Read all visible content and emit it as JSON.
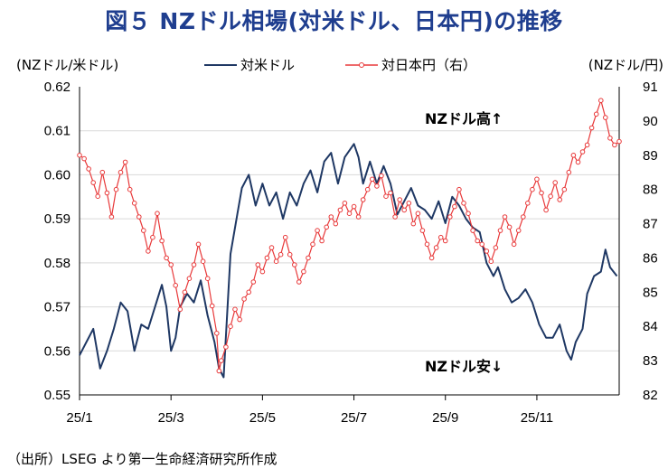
{
  "title": "図５ NZドル相場(対米ドル、日本円)の推移",
  "source": "（出所）LSEG より第一生命経済研究所作成",
  "colors": {
    "usd": "#1f3864",
    "jpy": "#e8393a",
    "title": "#1f3e8f"
  },
  "chart_data": {
    "type": "line",
    "left_axis_unit": "(NZドル/米ドル)",
    "right_axis_unit": "(NZドル/円)",
    "left_ylim": [
      0.55,
      0.62
    ],
    "right_ylim": [
      82,
      91
    ],
    "left_ticks": [
      "0.62",
      "0.61",
      "0.60",
      "0.59",
      "0.58",
      "0.57",
      "0.56",
      "0.55"
    ],
    "right_ticks": [
      "91",
      "90",
      "89",
      "88",
      "87",
      "86",
      "85",
      "84",
      "83",
      "82"
    ],
    "x_ticks": [
      "25/1",
      "25/3",
      "25/5",
      "25/7",
      "25/9",
      "25/11"
    ],
    "x_tick_positions": [
      0,
      2,
      4,
      6,
      8,
      10
    ],
    "xlim": [
      0,
      11.8
    ],
    "annotation_high": "NZドル高↑",
    "annotation_low": "NZドル安↓",
    "series": [
      {
        "name": "対米ドル",
        "axis": "left",
        "points": [
          [
            0,
            0.559
          ],
          [
            0.15,
            0.562
          ],
          [
            0.3,
            0.565
          ],
          [
            0.45,
            0.556
          ],
          [
            0.6,
            0.56
          ],
          [
            0.75,
            0.565
          ],
          [
            0.9,
            0.571
          ],
          [
            1.05,
            0.569
          ],
          [
            1.2,
            0.56
          ],
          [
            1.35,
            0.566
          ],
          [
            1.5,
            0.565
          ],
          [
            1.65,
            0.57
          ],
          [
            1.8,
            0.575
          ],
          [
            1.9,
            0.57
          ],
          [
            2.0,
            0.56
          ],
          [
            2.1,
            0.563
          ],
          [
            2.2,
            0.57
          ],
          [
            2.35,
            0.573
          ],
          [
            2.5,
            0.571
          ],
          [
            2.65,
            0.576
          ],
          [
            2.8,
            0.568
          ],
          [
            2.95,
            0.562
          ],
          [
            3.05,
            0.556
          ],
          [
            3.15,
            0.554
          ],
          [
            3.3,
            0.582
          ],
          [
            3.45,
            0.591
          ],
          [
            3.55,
            0.597
          ],
          [
            3.7,
            0.6
          ],
          [
            3.85,
            0.593
          ],
          [
            4.0,
            0.598
          ],
          [
            4.15,
            0.593
          ],
          [
            4.3,
            0.596
          ],
          [
            4.45,
            0.59
          ],
          [
            4.6,
            0.596
          ],
          [
            4.75,
            0.593
          ],
          [
            4.9,
            0.598
          ],
          [
            5.05,
            0.601
          ],
          [
            5.2,
            0.596
          ],
          [
            5.35,
            0.603
          ],
          [
            5.5,
            0.605
          ],
          [
            5.65,
            0.598
          ],
          [
            5.8,
            0.604
          ],
          [
            6.0,
            0.607
          ],
          [
            6.1,
            0.604
          ],
          [
            6.2,
            0.598
          ],
          [
            6.35,
            0.603
          ],
          [
            6.5,
            0.598
          ],
          [
            6.65,
            0.602
          ],
          [
            6.8,
            0.598
          ],
          [
            6.95,
            0.591
          ],
          [
            7.1,
            0.594
          ],
          [
            7.25,
            0.597
          ],
          [
            7.4,
            0.593
          ],
          [
            7.55,
            0.592
          ],
          [
            7.7,
            0.59
          ],
          [
            7.85,
            0.594
          ],
          [
            8.0,
            0.589
          ],
          [
            8.15,
            0.595
          ],
          [
            8.3,
            0.593
          ],
          [
            8.45,
            0.59
          ],
          [
            8.6,
            0.588
          ],
          [
            8.75,
            0.587
          ],
          [
            8.9,
            0.58
          ],
          [
            9.05,
            0.577
          ],
          [
            9.15,
            0.579
          ],
          [
            9.3,
            0.574
          ],
          [
            9.45,
            0.571
          ],
          [
            9.6,
            0.572
          ],
          [
            9.75,
            0.574
          ],
          [
            9.9,
            0.571
          ],
          [
            10.05,
            0.566
          ],
          [
            10.2,
            0.563
          ],
          [
            10.35,
            0.563
          ],
          [
            10.5,
            0.566
          ],
          [
            10.65,
            0.56
          ],
          [
            10.75,
            0.558
          ],
          [
            10.85,
            0.562
          ],
          [
            11.0,
            0.565
          ],
          [
            11.1,
            0.573
          ],
          [
            11.25,
            0.577
          ],
          [
            11.4,
            0.578
          ],
          [
            11.5,
            0.583
          ],
          [
            11.6,
            0.579
          ],
          [
            11.75,
            0.577
          ]
        ]
      },
      {
        "name": "対日本円（右）",
        "axis": "right",
        "points": [
          [
            0,
            89.0
          ],
          [
            0.1,
            88.9
          ],
          [
            0.2,
            88.6
          ],
          [
            0.3,
            88.2
          ],
          [
            0.4,
            87.8
          ],
          [
            0.5,
            88.5
          ],
          [
            0.6,
            87.9
          ],
          [
            0.7,
            87.2
          ],
          [
            0.8,
            88.0
          ],
          [
            0.9,
            88.5
          ],
          [
            1.0,
            88.8
          ],
          [
            1.1,
            88.0
          ],
          [
            1.2,
            87.6
          ],
          [
            1.3,
            87.2
          ],
          [
            1.4,
            86.8
          ],
          [
            1.5,
            86.2
          ],
          [
            1.6,
            86.6
          ],
          [
            1.7,
            87.3
          ],
          [
            1.8,
            86.5
          ],
          [
            1.9,
            86.0
          ],
          [
            2.0,
            85.8
          ],
          [
            2.1,
            85.2
          ],
          [
            2.2,
            84.5
          ],
          [
            2.3,
            85.0
          ],
          [
            2.4,
            85.4
          ],
          [
            2.5,
            85.8
          ],
          [
            2.6,
            86.4
          ],
          [
            2.7,
            85.9
          ],
          [
            2.8,
            85.4
          ],
          [
            2.9,
            84.6
          ],
          [
            3.0,
            83.8
          ],
          [
            3.05,
            82.7
          ],
          [
            3.1,
            83.0
          ],
          [
            3.2,
            83.4
          ],
          [
            3.3,
            84.0
          ],
          [
            3.4,
            84.5
          ],
          [
            3.5,
            84.2
          ],
          [
            3.6,
            84.8
          ],
          [
            3.7,
            85.0
          ],
          [
            3.8,
            85.3
          ],
          [
            3.9,
            85.8
          ],
          [
            4.0,
            85.6
          ],
          [
            4.1,
            86.0
          ],
          [
            4.2,
            86.3
          ],
          [
            4.3,
            85.9
          ],
          [
            4.4,
            86.1
          ],
          [
            4.5,
            86.6
          ],
          [
            4.6,
            86.1
          ],
          [
            4.7,
            85.8
          ],
          [
            4.8,
            85.3
          ],
          [
            4.9,
            85.6
          ],
          [
            5.0,
            86.0
          ],
          [
            5.1,
            86.4
          ],
          [
            5.2,
            86.8
          ],
          [
            5.3,
            86.5
          ],
          [
            5.4,
            86.9
          ],
          [
            5.5,
            87.2
          ],
          [
            5.6,
            87.0
          ],
          [
            5.7,
            87.4
          ],
          [
            5.8,
            87.6
          ],
          [
            5.9,
            87.3
          ],
          [
            6.0,
            87.5
          ],
          [
            6.1,
            87.2
          ],
          [
            6.2,
            87.7
          ],
          [
            6.3,
            88.0
          ],
          [
            6.4,
            88.3
          ],
          [
            6.5,
            88.1
          ],
          [
            6.6,
            88.4
          ],
          [
            6.7,
            87.8
          ],
          [
            6.8,
            87.9
          ],
          [
            6.9,
            87.2
          ],
          [
            7.0,
            87.7
          ],
          [
            7.1,
            87.4
          ],
          [
            7.2,
            87.6
          ],
          [
            7.3,
            87.0
          ],
          [
            7.4,
            87.3
          ],
          [
            7.5,
            86.8
          ],
          [
            7.6,
            86.4
          ],
          [
            7.7,
            86.0
          ],
          [
            7.8,
            86.3
          ],
          [
            7.9,
            86.6
          ],
          [
            8.0,
            86.5
          ],
          [
            8.1,
            87.2
          ],
          [
            8.2,
            87.5
          ],
          [
            8.3,
            88.0
          ],
          [
            8.4,
            87.6
          ],
          [
            8.5,
            87.3
          ],
          [
            8.6,
            86.8
          ],
          [
            8.7,
            86.5
          ],
          [
            8.8,
            86.4
          ],
          [
            8.9,
            86.2
          ],
          [
            9.0,
            85.9
          ],
          [
            9.1,
            86.3
          ],
          [
            9.2,
            86.8
          ],
          [
            9.3,
            87.2
          ],
          [
            9.4,
            86.9
          ],
          [
            9.5,
            86.4
          ],
          [
            9.6,
            86.8
          ],
          [
            9.7,
            87.2
          ],
          [
            9.8,
            87.6
          ],
          [
            9.9,
            88.0
          ],
          [
            10.0,
            88.3
          ],
          [
            10.1,
            87.9
          ],
          [
            10.2,
            87.4
          ],
          [
            10.3,
            87.8
          ],
          [
            10.4,
            88.2
          ],
          [
            10.5,
            87.7
          ],
          [
            10.6,
            88.0
          ],
          [
            10.7,
            88.5
          ],
          [
            10.8,
            89.0
          ],
          [
            10.9,
            88.8
          ],
          [
            11.0,
            89.1
          ],
          [
            11.1,
            89.3
          ],
          [
            11.2,
            89.8
          ],
          [
            11.3,
            90.2
          ],
          [
            11.4,
            90.6
          ],
          [
            11.5,
            90.1
          ],
          [
            11.6,
            89.5
          ],
          [
            11.7,
            89.3
          ],
          [
            11.8,
            89.4
          ]
        ]
      }
    ]
  }
}
